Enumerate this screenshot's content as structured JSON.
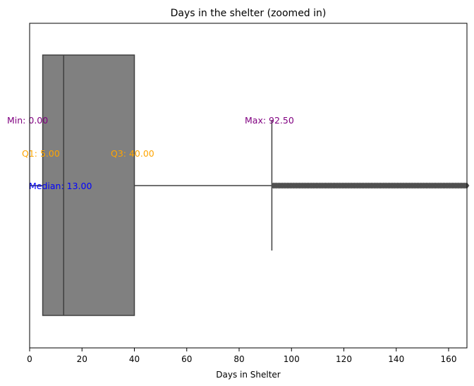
{
  "chart_data": {
    "type": "box",
    "orientation": "horizontal",
    "title": "Days in the shelter (zoomed in)",
    "xlabel": "Days in Shelter",
    "ylabel": "",
    "xlim": [
      0,
      167
    ],
    "x_ticks": [
      0,
      20,
      40,
      60,
      80,
      100,
      120,
      140,
      160
    ],
    "grid": false,
    "box": {
      "min": 0,
      "q1": 5,
      "median": 13,
      "q3": 40,
      "whisker_high": 92.5,
      "outliers_from": 93,
      "outliers_to": 167,
      "color": "#808080",
      "edge_color": "#404040"
    },
    "annotations": [
      {
        "id": "min",
        "text": "Min: 0.00",
        "x": 0,
        "color": "#800080"
      },
      {
        "id": "max",
        "text": "Max: 92.50",
        "x": 92.5,
        "color": "#800080"
      },
      {
        "id": "q1",
        "text": "Q1: 5.00",
        "x": 5,
        "color": "#FFA500"
      },
      {
        "id": "q3",
        "text": "Q3: 40.00",
        "x": 40,
        "color": "#FFA500"
      },
      {
        "id": "median",
        "text": "Median: 13.00",
        "x": 13,
        "color": "#0000FF"
      }
    ]
  }
}
